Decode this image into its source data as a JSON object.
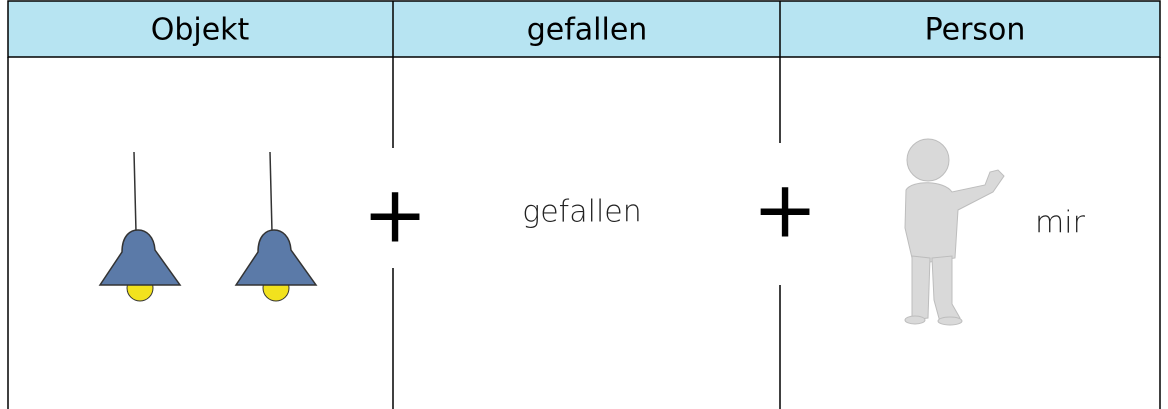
{
  "header": {
    "columns": [
      "Objekt",
      "gefallen",
      "Person"
    ]
  },
  "body": {
    "verb": "gefallen",
    "pronoun": "mir",
    "operators": [
      "+",
      "+"
    ]
  }
}
